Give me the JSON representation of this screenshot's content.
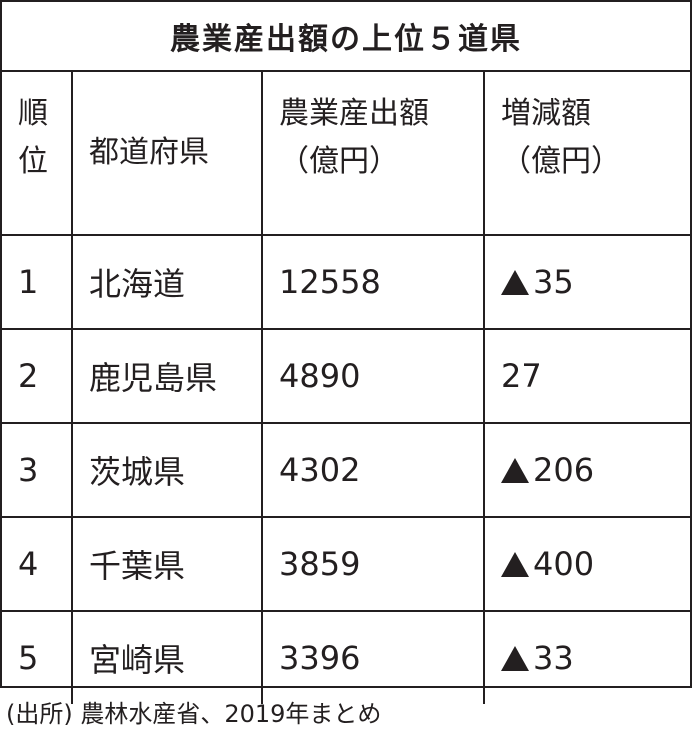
{
  "title": "農業産出額の上位５道県",
  "headers": {
    "rank": [
      "順",
      "位"
    ],
    "prefecture": "都道府県",
    "amount": [
      "農業産出額",
      "（億円）"
    ],
    "change": [
      "増減額",
      "（億円）"
    ]
  },
  "rows": [
    {
      "rank": "1",
      "prefecture": "北海道",
      "amount": "12558",
      "change": "35",
      "negative": true
    },
    {
      "rank": "2",
      "prefecture": "鹿児島県",
      "amount": "4890",
      "change": "27",
      "negative": false
    },
    {
      "rank": "3",
      "prefecture": "茨城県",
      "amount": "4302",
      "change": "206",
      "negative": true
    },
    {
      "rank": "4",
      "prefecture": "千葉県",
      "amount": "3859",
      "change": "400",
      "negative": true
    },
    {
      "rank": "5",
      "prefecture": "宮崎県",
      "amount": "3396",
      "change": "33",
      "negative": true
    }
  ],
  "source": "(出所) 農林水産省、2019年まとめ",
  "colors": {
    "ink": "#231f20",
    "background": "#ffffff"
  }
}
